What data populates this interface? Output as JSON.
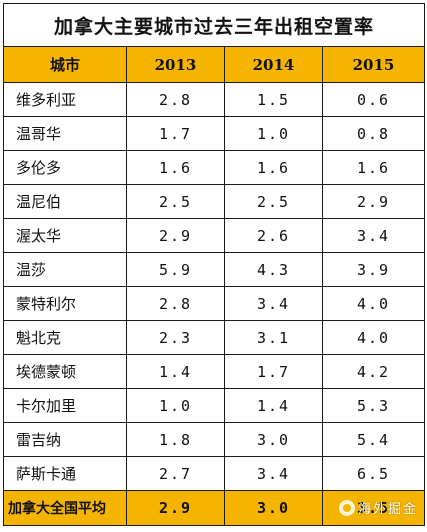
{
  "title": "加拿大主要城市过去三年出租空置率",
  "headers": [
    "城市",
    "2013",
    "2014",
    "2015"
  ],
  "rows": [
    {
      "city": "维多利亚",
      "v2013": "2.8",
      "v2014": "1.5",
      "v2015": "0.6"
    },
    {
      "city": "温哥华",
      "v2013": "1.7",
      "v2014": "1.0",
      "v2015": "0.8"
    },
    {
      "city": "多伦多",
      "v2013": "1.6",
      "v2014": "1.6",
      "v2015": "1.6"
    },
    {
      "city": "温尼伯",
      "v2013": "2.5",
      "v2014": "2.5",
      "v2015": "2.9"
    },
    {
      "city": "渥太华",
      "v2013": "2.9",
      "v2014": "2.6",
      "v2015": "3.4"
    },
    {
      "city": "温莎",
      "v2013": "5.9",
      "v2014": "4.3",
      "v2015": "3.9"
    },
    {
      "city": "蒙特利尔",
      "v2013": "2.8",
      "v2014": "3.4",
      "v2015": "4.0"
    },
    {
      "city": "魁北克",
      "v2013": "2.3",
      "v2014": "3.1",
      "v2015": "4.0"
    },
    {
      "city": "埃德蒙顿",
      "v2013": "1.4",
      "v2014": "1.7",
      "v2015": "4.2"
    },
    {
      "city": "卡尔加里",
      "v2013": "1.0",
      "v2014": "1.4",
      "v2015": "5.3"
    },
    {
      "city": "雷吉纳",
      "v2013": "1.8",
      "v2014": "3.0",
      "v2015": "5.4"
    },
    {
      "city": "萨斯卡通",
      "v2013": "2.7",
      "v2014": "3.4",
      "v2015": "6.5"
    }
  ],
  "average": {
    "city": "加拿大全国平均",
    "v2013": "2.9",
    "v2014": "3.0",
    "v2015": "3.5"
  },
  "watermark": {
    "text": "海外掘金",
    "icon": "wechat-logo-icon"
  },
  "colors": {
    "header_bg": "#f5b400",
    "border": "#1a1a1a"
  }
}
